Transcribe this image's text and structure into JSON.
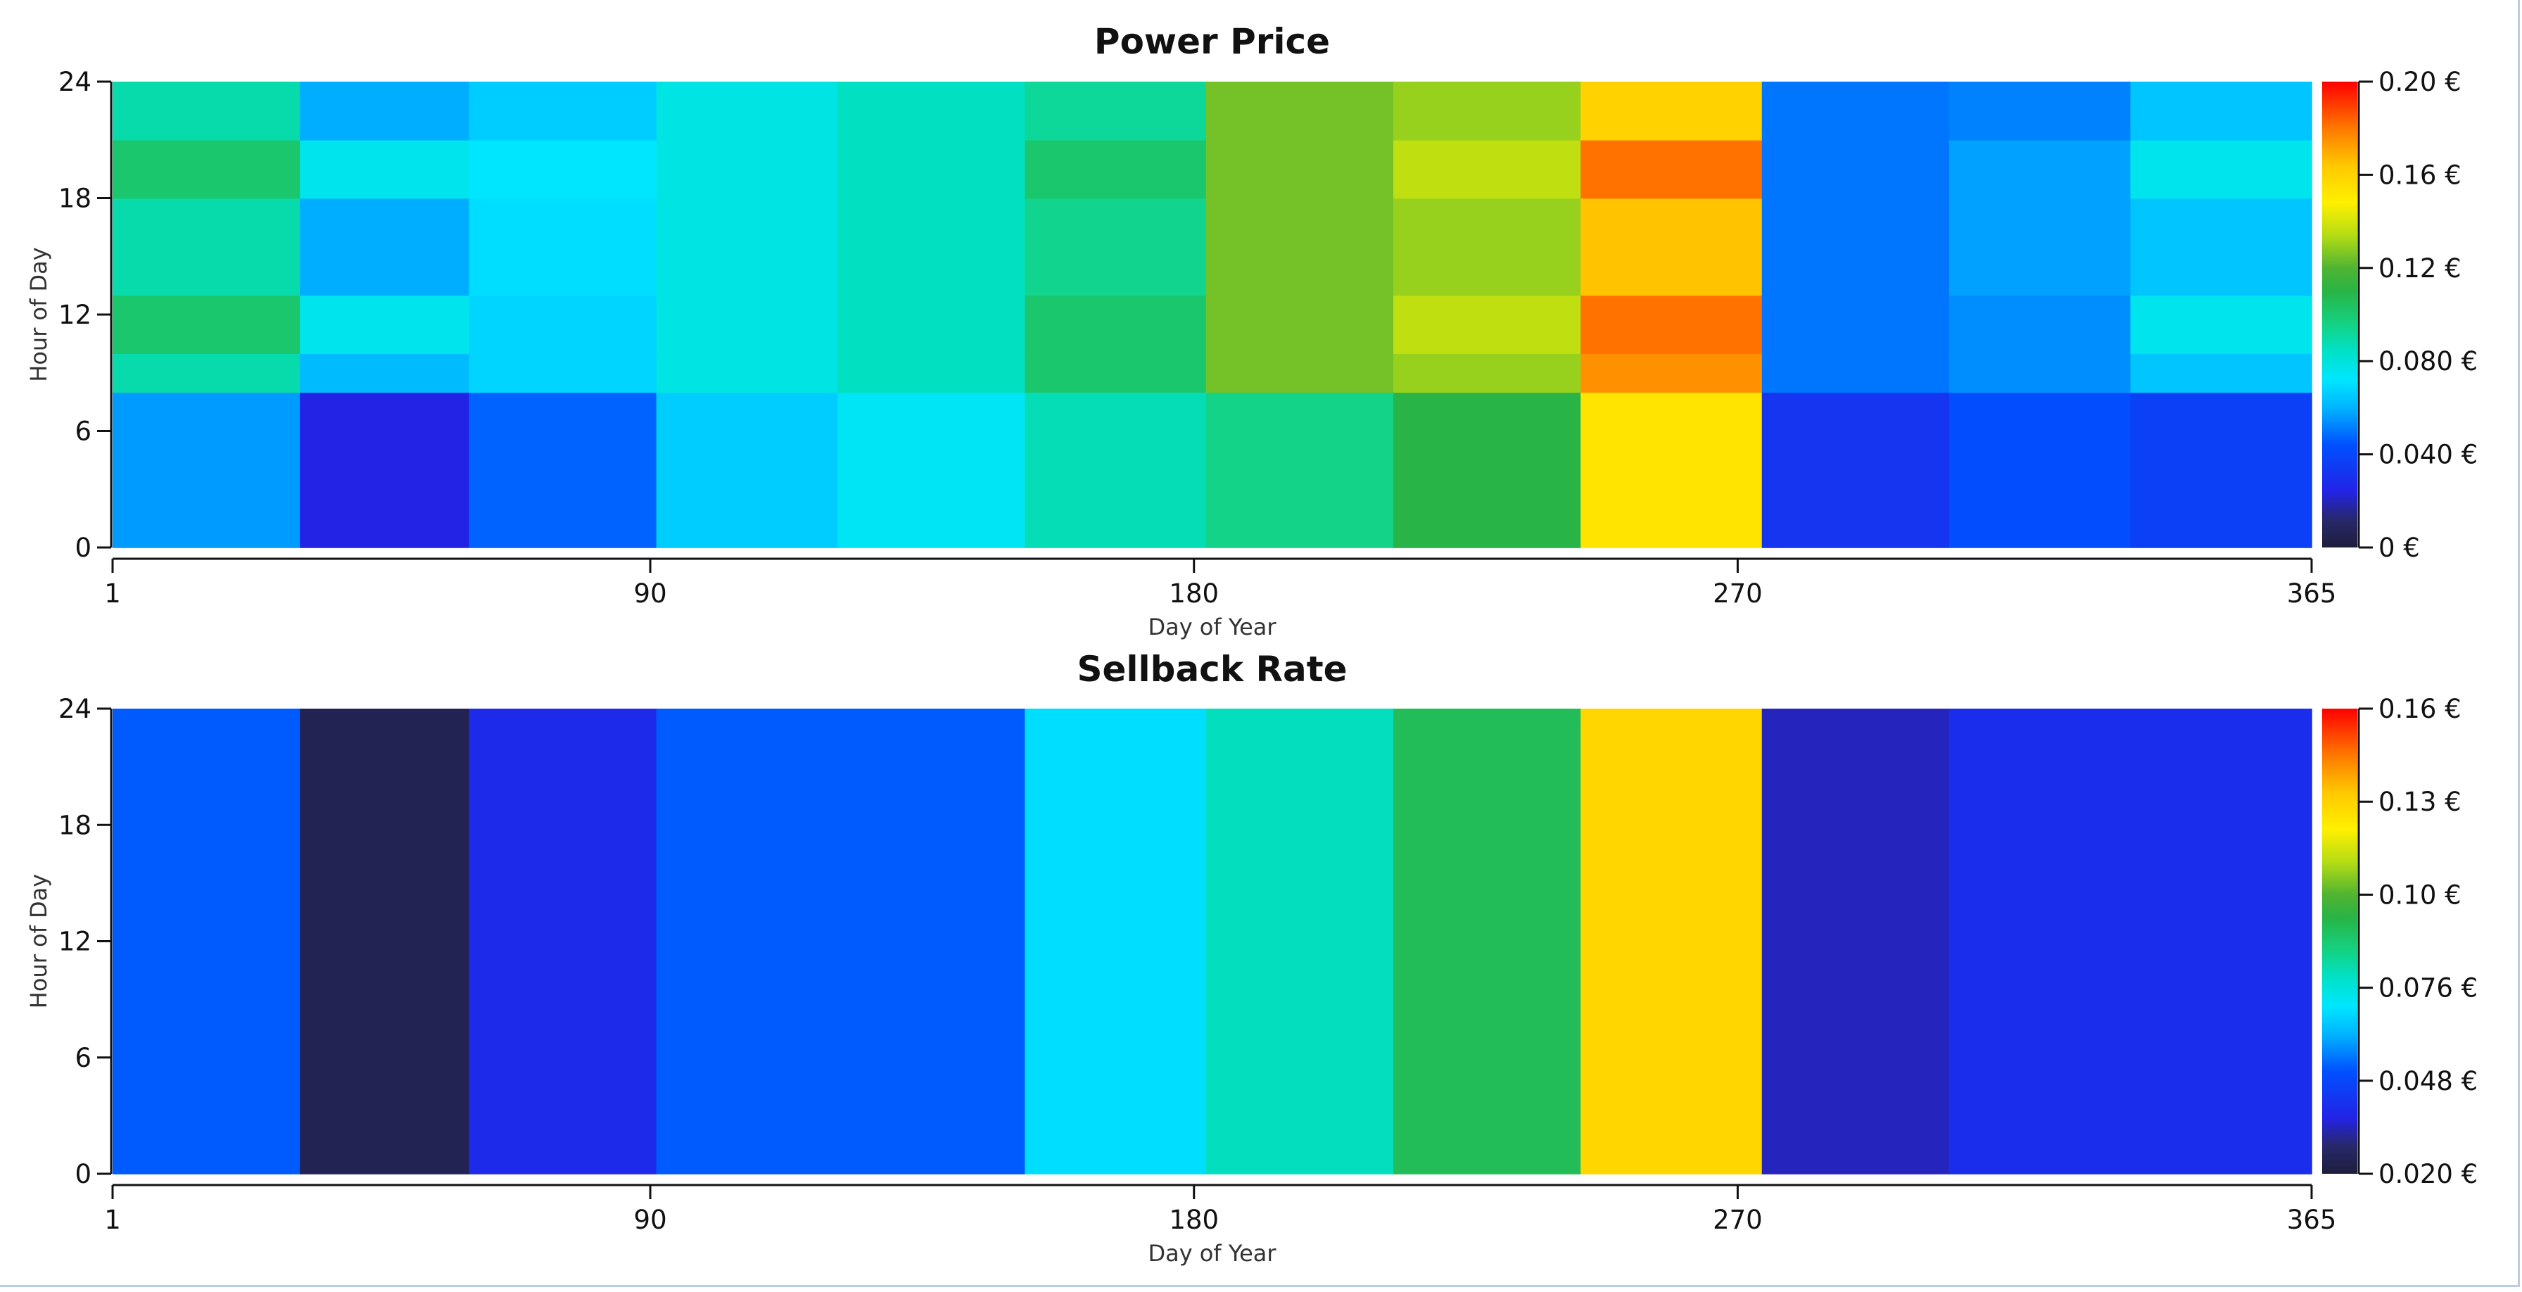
{
  "chart_data": [
    {
      "type": "heatmap",
      "title": "Power Price",
      "xlabel": "Day of Year",
      "ylabel": "Hour of Day",
      "xlim": [
        1,
        365
      ],
      "ylim": [
        0,
        24
      ],
      "x_ticks": [
        "1",
        "90",
        "180",
        "270",
        "365"
      ],
      "y_ticks": [
        "0",
        "6",
        "12",
        "18",
        "24"
      ],
      "colorbar": {
        "range": [
          0,
          0.2
        ],
        "ticks": [
          "0 €",
          "0.040 €",
          "0.080 €",
          "0.12 €",
          "0.16 €",
          "0.20 €"
        ]
      },
      "month_boundaries": [
        1,
        32,
        60,
        91,
        121,
        152,
        182,
        213,
        244,
        274,
        305,
        335,
        366
      ],
      "hour_bands": [
        {
          "from": 0,
          "to": 8
        },
        {
          "from": 8,
          "to": 10
        },
        {
          "from": 10,
          "to": 13
        },
        {
          "from": 13,
          "to": 18
        },
        {
          "from": 18,
          "to": 21
        },
        {
          "from": 21,
          "to": 24
        }
      ],
      "values": [
        [
          0.056,
          0.089,
          0.101,
          0.089,
          0.101,
          0.089
        ],
        [
          0.024,
          0.062,
          0.076,
          0.059,
          0.076,
          0.059
        ],
        [
          0.047,
          0.068,
          0.068,
          0.07,
          0.072,
          0.066
        ],
        [
          0.066,
          0.078,
          0.078,
          0.078,
          0.078,
          0.078
        ],
        [
          0.074,
          0.085,
          0.085,
          0.085,
          0.085,
          0.085
        ],
        [
          0.087,
          0.101,
          0.101,
          0.094,
          0.101,
          0.092
        ],
        [
          0.095,
          0.125,
          0.125,
          0.125,
          0.125,
          0.125
        ],
        [
          0.11,
          0.13,
          0.136,
          0.13,
          0.136,
          0.13
        ],
        [
          0.153,
          0.175,
          0.181,
          0.165,
          0.181,
          0.16
        ],
        [
          0.032,
          0.05,
          0.05,
          0.05,
          0.05,
          0.05
        ],
        [
          0.043,
          0.054,
          0.054,
          0.057,
          0.057,
          0.052
        ],
        [
          0.037,
          0.064,
          0.076,
          0.064,
          0.076,
          0.064
        ]
      ]
    },
    {
      "type": "heatmap",
      "title": "Sellback Rate",
      "xlabel": "Day of Year",
      "ylabel": "Hour of Day",
      "xlim": [
        1,
        365
      ],
      "ylim": [
        0,
        24
      ],
      "x_ticks": [
        "1",
        "90",
        "180",
        "270",
        "365"
      ],
      "y_ticks": [
        "0",
        "6",
        "12",
        "18",
        "24"
      ],
      "colorbar": {
        "range": [
          0.02,
          0.16
        ],
        "ticks": [
          "0.020 €",
          "0.048 €",
          "0.076 €",
          "0.10 €",
          "0.13 €",
          "0.16 €"
        ]
      },
      "month_boundaries": [
        1,
        32,
        60,
        91,
        152,
        182,
        213,
        244,
        274,
        305,
        366
      ],
      "hour_bands": [
        {
          "from": 0,
          "to": 24
        }
      ],
      "values": [
        [
          0.052
        ],
        [
          0.024
        ],
        [
          0.039
        ],
        [
          0.052
        ],
        [
          0.069
        ],
        [
          0.08
        ],
        [
          0.094
        ],
        [
          0.131
        ],
        [
          0.034
        ],
        [
          0.04
        ]
      ]
    }
  ]
}
